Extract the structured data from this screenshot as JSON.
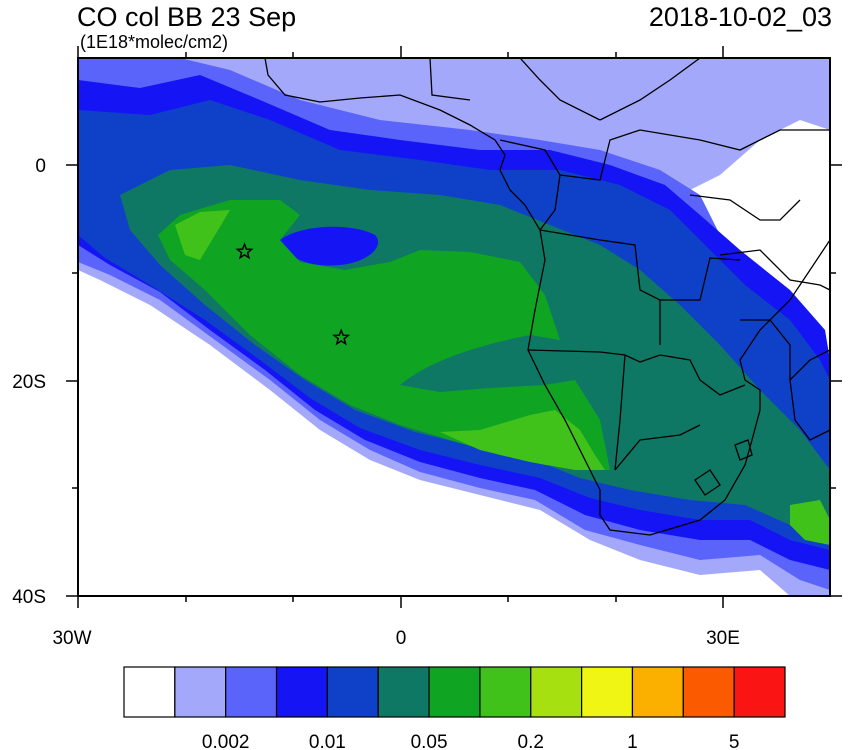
{
  "header": {
    "title": "CO col BB 23 Sep",
    "units": "(1E18*molec/cm2)",
    "datetime": "2018-10-02_03"
  },
  "axes": {
    "lat_labels": [
      "0",
      "20S",
      "40S"
    ],
    "lon_labels": [
      "30W",
      "0",
      "30E"
    ]
  },
  "colorbar": {
    "colors": [
      "#ffffff",
      "#a3a8fa",
      "#5a64fa",
      "#1414f5",
      "#0f41c8",
      "#0e7864",
      "#0fa522",
      "#40c21a",
      "#a6e010",
      "#f0f514",
      "#fbb000",
      "#fb5a00",
      "#fa1414"
    ],
    "labels": [
      "0.002",
      "0.01",
      "0.05",
      "0.2",
      "1",
      "5"
    ]
  },
  "markers": [
    {
      "name": "star-marker-1",
      "lon": -14.5,
      "lat": -8
    },
    {
      "name": "star-marker-2",
      "lon": -5.5,
      "lat": -16
    }
  ],
  "chart_data": {
    "type": "heatmap",
    "title": "CO col BB 23 Sep",
    "subtitle": "(1E18*molec/cm2)",
    "valid_time": "2018-10-02_03",
    "xlim": [
      -30,
      40
    ],
    "ylim": [
      -40,
      10
    ],
    "x_ticks": [
      -30,
      0,
      30
    ],
    "y_ticks": [
      0,
      -20,
      -40
    ],
    "levels": [
      0.001,
      0.002,
      0.005,
      0.01,
      0.02,
      0.05,
      0.1,
      0.2,
      0.5,
      1,
      2,
      5
    ],
    "plume_max_approx": 0.2,
    "plume_center_region": "southeast Atlantic off Namibia/Angola"
  }
}
